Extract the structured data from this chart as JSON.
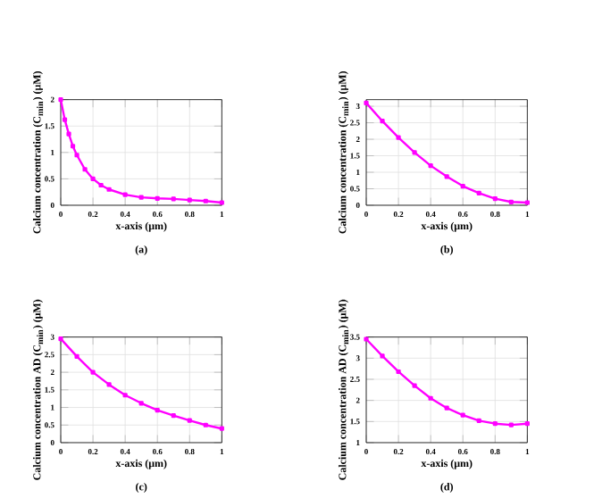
{
  "chart_data": [
    {
      "type": "line",
      "xlabel": "x-axis (μm)",
      "ylabel": "Calcium concentration (C$_{min}$) (μM)",
      "annotations": [
        "(a)"
      ],
      "xlim": [
        0,
        1
      ],
      "ylim": [
        0,
        2
      ],
      "xticks": [
        0,
        0.2,
        0.4,
        0.6,
        0.8,
        1
      ],
      "yticks": [
        0,
        0.5,
        1,
        1.5,
        2
      ],
      "grid": true,
      "marker": "square",
      "line_style": "solid",
      "x": [
        0,
        0.025,
        0.05,
        0.075,
        0.1,
        0.15,
        0.2,
        0.25,
        0.3,
        0.4,
        0.5,
        0.6,
        0.7,
        0.8,
        0.9,
        1
      ],
      "series": [
        {
          "color": "#ff00ff",
          "values": [
            2.0,
            1.62,
            1.35,
            1.12,
            0.95,
            0.68,
            0.5,
            0.38,
            0.3,
            0.2,
            0.15,
            0.13,
            0.12,
            0.1,
            0.08,
            0.05
          ]
        }
      ]
    },
    {
      "type": "line",
      "xlabel": "x-axis (μm)",
      "ylabel": "Calcium concentration (C$_{min}$) (μM)",
      "annotations": [
        "(b)"
      ],
      "xlim": [
        0,
        1
      ],
      "ylim": [
        0,
        3.2
      ],
      "xticks": [
        0,
        0.2,
        0.4,
        0.6,
        0.8,
        1
      ],
      "yticks": [
        0,
        0.5,
        1,
        1.5,
        2,
        2.5,
        3
      ],
      "grid": true,
      "marker": "square",
      "line_style": "solid",
      "x": [
        0,
        0.1,
        0.2,
        0.3,
        0.4,
        0.5,
        0.6,
        0.7,
        0.8,
        0.9,
        1
      ],
      "series": [
        {
          "color": "#ff00ff",
          "values": [
            3.1,
            2.55,
            2.05,
            1.6,
            1.2,
            0.87,
            0.58,
            0.37,
            0.2,
            0.1,
            0.08
          ]
        }
      ]
    },
    {
      "type": "line",
      "xlabel": "x-axis (μm)",
      "ylabel": "Calcium concentration AD (C$_{min}$) (μM)",
      "annotations": [
        "(c)"
      ],
      "xlim": [
        0,
        1
      ],
      "ylim": [
        0,
        3
      ],
      "xticks": [
        0,
        0.2,
        0.4,
        0.6,
        0.8,
        1
      ],
      "yticks": [
        0,
        0.5,
        1,
        1.5,
        2,
        2.5,
        3
      ],
      "grid": true,
      "marker": "square",
      "line_style": "solid",
      "x": [
        0,
        0.1,
        0.2,
        0.3,
        0.4,
        0.5,
        0.6,
        0.7,
        0.8,
        0.9,
        1
      ],
      "series": [
        {
          "color": "#ff00ff",
          "values": [
            2.95,
            2.45,
            2.0,
            1.65,
            1.35,
            1.12,
            0.92,
            0.77,
            0.63,
            0.5,
            0.4
          ]
        }
      ]
    },
    {
      "type": "line",
      "xlabel": "x-axis (μm)",
      "ylabel": "Calcium concentration AD (C$_{min}$) (μM)",
      "annotations": [
        "(d)"
      ],
      "xlim": [
        0,
        1
      ],
      "ylim": [
        1,
        3.5
      ],
      "xticks": [
        0,
        0.2,
        0.4,
        0.6,
        0.8,
        1
      ],
      "yticks": [
        1,
        1.5,
        2,
        2.5,
        3,
        3.5
      ],
      "grid": true,
      "marker": "square",
      "line_style": "solid",
      "x": [
        0,
        0.1,
        0.2,
        0.3,
        0.4,
        0.5,
        0.6,
        0.7,
        0.8,
        0.9,
        1
      ],
      "series": [
        {
          "color": "#ff00ff",
          "values": [
            3.45,
            3.05,
            2.68,
            2.35,
            2.05,
            1.82,
            1.65,
            1.52,
            1.45,
            1.42,
            1.45
          ]
        }
      ]
    }
  ]
}
